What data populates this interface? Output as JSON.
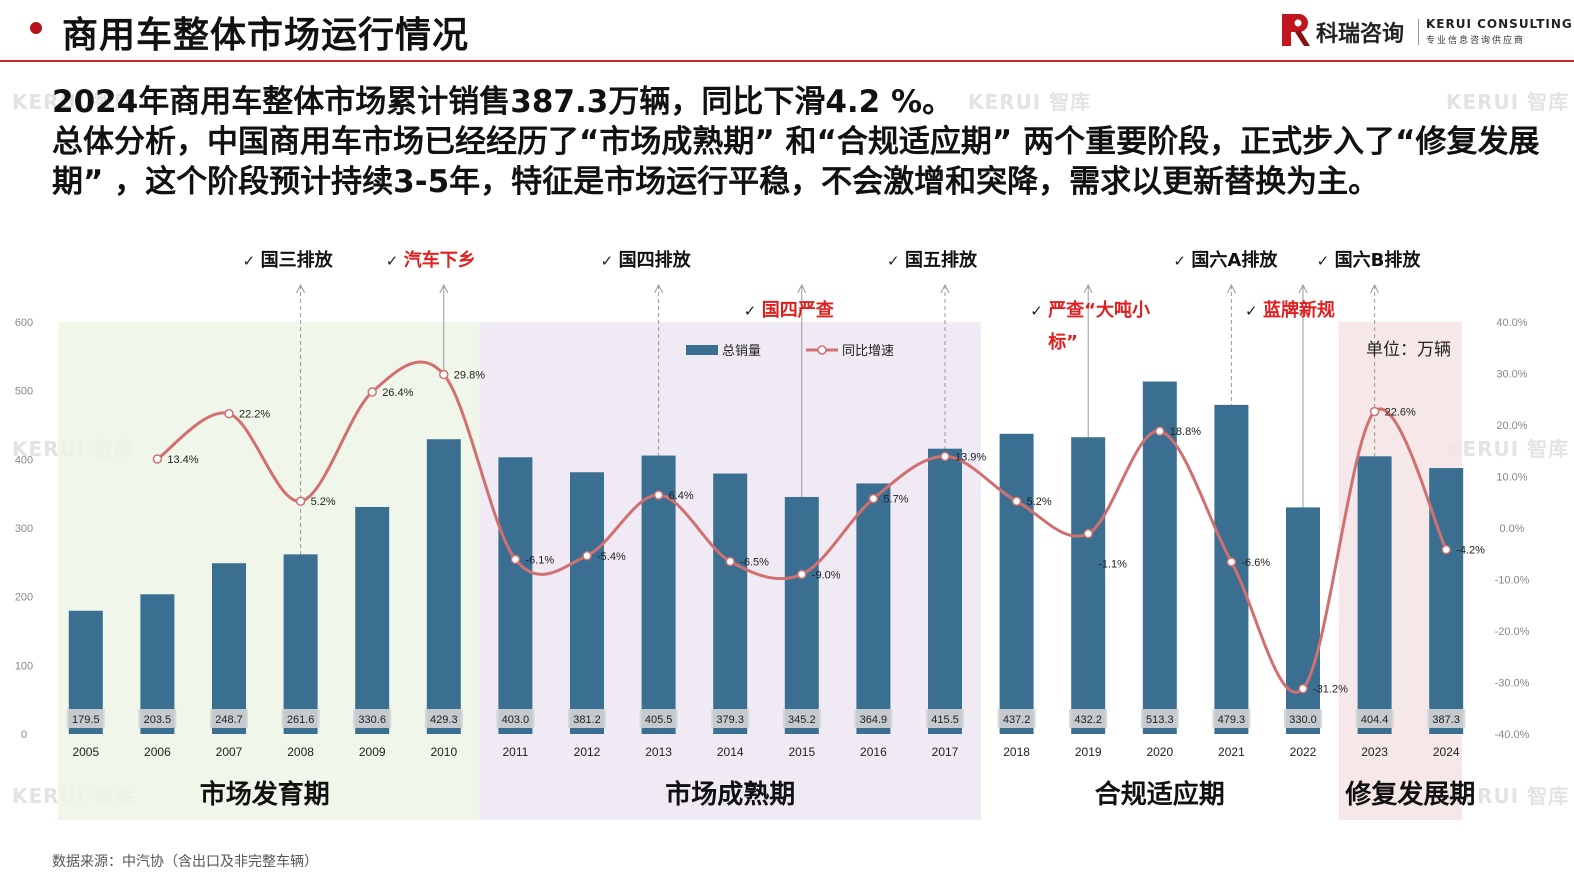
{
  "header": {
    "title": "商用车整体市场运行情况",
    "logo": {
      "name_cn": "科瑞咨询",
      "name_en": "KERUI CONSULTING",
      "tagline": "专业信息咨询供应商"
    }
  },
  "summary": {
    "line1": "2024年商用车整体市场累计销售387.3万辆，同比下滑4.2 %。",
    "line2": "总体分析，中国商用车市场已经经历了“市场成熟期” 和“合规适应期” 两个重要阶段，正式步入了“修复发展期” ，这个阶段预计持续3-5年，特征是市场运行平稳，不会激增和突降，需求以更新替换为主。"
  },
  "watermark": "KERUI 智库",
  "colors": {
    "bar": "#3a6f91",
    "line": "#d07070",
    "accent_red": "#e02020",
    "phase1_bg": "#eef5e6",
    "phase2_bg": "#ece6f2",
    "phase4_bg": "#f5e4e4"
  },
  "chart_data": {
    "type": "bar+line",
    "categories": [
      "2005",
      "2006",
      "2007",
      "2008",
      "2009",
      "2010",
      "2011",
      "2012",
      "2013",
      "2014",
      "2015",
      "2016",
      "2017",
      "2018",
      "2019",
      "2020",
      "2021",
      "2022",
      "2023",
      "2024"
    ],
    "series": [
      {
        "name": "总销量",
        "type": "bar",
        "axis": "left",
        "values": [
          179.5,
          203.5,
          248.7,
          261.6,
          330.6,
          429.3,
          403.0,
          381.2,
          405.5,
          379.3,
          345.2,
          364.9,
          415.5,
          437.2,
          432.2,
          513.3,
          479.3,
          330.0,
          404.4,
          387.3
        ],
        "labels": [
          "179.5",
          "203.5",
          "248.7",
          "261.6",
          "330.6",
          "429.3",
          "403.0",
          "381.2",
          "405.5",
          "379.3",
          "345.2",
          "364.9",
          "415.5",
          "437.2",
          "432.2",
          "513.3",
          "479.3",
          "330.0",
          "404.4",
          "387.3"
        ]
      },
      {
        "name": "同比增速",
        "type": "line",
        "axis": "right",
        "values": [
          null,
          13.4,
          22.2,
          5.2,
          26.4,
          29.8,
          -6.1,
          -5.4,
          6.4,
          -6.5,
          -9.0,
          5.7,
          13.9,
          5.2,
          -1.1,
          18.8,
          -6.6,
          -31.2,
          22.6,
          -4.2
        ],
        "labels": [
          "",
          "13.4%",
          "22.2%",
          "5.2%",
          "26.4%",
          "29.8%",
          "-6.1%",
          "-5.4%",
          "6.4%",
          "-6.5%",
          "-9.0%",
          "5.7%",
          "13.9%",
          "5.2%",
          "-1.1%",
          "18.8%",
          "-6.6%",
          "-31.2%",
          "22.6%",
          "-4.2%"
        ]
      }
    ],
    "y_left": {
      "min": 0,
      "max": 600,
      "ticks": [
        "0",
        "100",
        "200",
        "300",
        "400",
        "500",
        "600"
      ]
    },
    "y_right": {
      "min": -40,
      "max": 40,
      "ticks": [
        "-40.0%",
        "-30.0%",
        "-20.0%",
        "-10.0%",
        "0.0%",
        "10.0%",
        "20.0%",
        "30.0%",
        "40.0%"
      ]
    },
    "unit_label": "单位：万辆",
    "legend": {
      "placement": "top-center",
      "items": [
        "总销量",
        "同比增速"
      ]
    },
    "phases": [
      {
        "label": "市场发育期",
        "from": "2005",
        "to": "2010"
      },
      {
        "label": "市场成熟期",
        "from": "2011",
        "to": "2017"
      },
      {
        "label": "合规适应期",
        "from": "2018",
        "to": "2022"
      },
      {
        "label": "修复发展期",
        "from": "2023",
        "to": "2024"
      }
    ],
    "policy_events": [
      {
        "label": "国三排放",
        "year": "2008",
        "highlight": false,
        "row": 1
      },
      {
        "label": "汽车下乡",
        "year": "2010",
        "highlight": true,
        "row": 1
      },
      {
        "label": "国四排放",
        "year": "2013",
        "highlight": false,
        "row": 1
      },
      {
        "label": "国四严查",
        "year": "2015",
        "highlight": true,
        "row": 2
      },
      {
        "label": "国五排放",
        "year": "2017",
        "highlight": false,
        "row": 1
      },
      {
        "label": "严查“大吨小标”",
        "year": "2019",
        "highlight": true,
        "row": 2
      },
      {
        "label": "国六A排放",
        "year": "2021",
        "highlight": false,
        "row": 1
      },
      {
        "label": "蓝牌新规",
        "year": "2022",
        "highlight": true,
        "row": 2
      },
      {
        "label": "国六B排放",
        "year": "2023",
        "highlight": false,
        "row": 1
      }
    ],
    "grid": false
  },
  "source": "数据来源：中汽协（含出口及非完整车辆）"
}
